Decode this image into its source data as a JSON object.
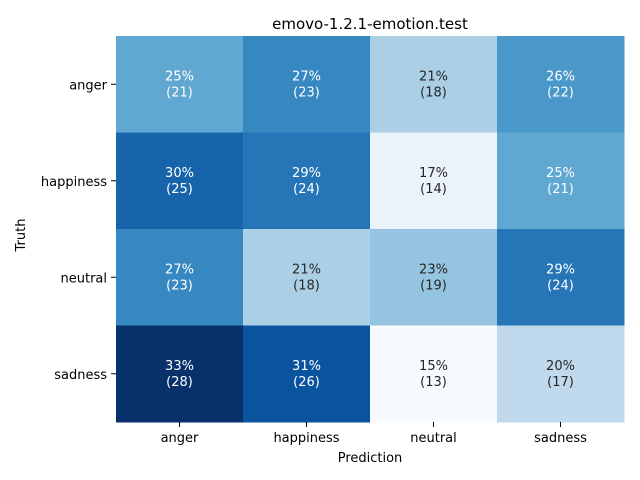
{
  "chart_data": {
    "type": "heatmap",
    "title": "emovo-1.2.1-emotion.test",
    "xlabel": "Prediction",
    "ylabel": "Truth",
    "x_categories": [
      "anger",
      "happiness",
      "neutral",
      "sadness"
    ],
    "y_categories": [
      "anger",
      "happiness",
      "neutral",
      "sadness"
    ],
    "percent": [
      [
        25,
        27,
        21,
        26
      ],
      [
        30,
        29,
        17,
        25
      ],
      [
        27,
        21,
        23,
        29
      ],
      [
        33,
        31,
        15,
        20
      ]
    ],
    "counts": [
      [
        21,
        23,
        18,
        22
      ],
      [
        25,
        24,
        14,
        21
      ],
      [
        23,
        18,
        19,
        24
      ],
      [
        28,
        26,
        13,
        17
      ]
    ],
    "colormap": "Blues",
    "colorbar": false,
    "grid": false,
    "color_low": "#f7fbff",
    "color_high": "#08306b"
  }
}
